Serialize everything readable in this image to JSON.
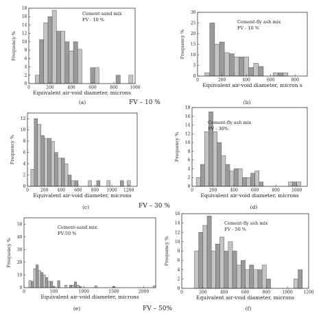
{
  "chart_data": [
    {
      "type": "bar",
      "panel_label": "(a)",
      "legend": [
        "Cement-sand mix",
        "FV - 10 %"
      ],
      "xlabel": "Equivalent air-void diameter, microns",
      "ylabel": "Frequency %",
      "xlim": [
        0,
        1000
      ],
      "ylim": [
        0,
        18
      ],
      "xticks": [
        0,
        200,
        400,
        600,
        800,
        1000
      ],
      "yticks": [
        0,
        2,
        4,
        6,
        8,
        10,
        12,
        14,
        16,
        18
      ],
      "bin_width": 40,
      "x": [
        80,
        120,
        160,
        200,
        240,
        280,
        320,
        360,
        400,
        440,
        480,
        600,
        640,
        840,
        960
      ],
      "values": [
        2,
        10.5,
        14.5,
        16,
        17.5,
        12.5,
        12.5,
        10,
        7.8,
        10,
        8.2,
        3.8,
        3.8,
        2,
        2
      ]
    },
    {
      "type": "bar",
      "panel_label": "(b)",
      "legend": [
        "Cement-fly ash mix",
        "FV - 10 %"
      ],
      "xlabel": "Equivalent air-void diameter, micron s",
      "ylabel": "Frequency %",
      "xlim": [
        0,
        900
      ],
      "ylim": [
        0,
        30
      ],
      "xticks": [
        0,
        200,
        400,
        600,
        800
      ],
      "yticks": [
        0,
        5,
        10,
        15,
        20,
        25,
        30
      ],
      "bin_width": 40,
      "x": [
        80,
        120,
        160,
        200,
        240,
        280,
        320,
        360,
        400,
        440,
        480,
        520,
        640,
        680,
        720
      ],
      "values": [
        1.5,
        25,
        15,
        16,
        11,
        10.5,
        9,
        9,
        9,
        4,
        6,
        4.5,
        1.5,
        1.5,
        1.5
      ]
    },
    {
      "type": "bar",
      "panel_label": "(c)",
      "legend": [],
      "xlabel": "Equivalent air-void diameter, microns",
      "ylabel": "Frequency %",
      "xlim": [
        0,
        1300
      ],
      "ylim": [
        0,
        13
      ],
      "xticks": [
        0,
        200,
        400,
        600,
        800,
        1000,
        1200
      ],
      "yticks": [
        0,
        2,
        4,
        6,
        8,
        10,
        12
      ],
      "bin_width": 40,
      "x": [
        60,
        100,
        140,
        180,
        220,
        260,
        300,
        340,
        380,
        420,
        460,
        500,
        540,
        580,
        740,
        840,
        960,
        1120,
        1200
      ],
      "values": [
        3,
        12,
        11,
        9,
        8.5,
        8.5,
        8,
        6,
        5,
        5,
        4,
        2,
        1,
        1,
        1,
        1,
        1,
        1,
        1
      ]
    },
    {
      "type": "bar",
      "panel_label": "(d)",
      "legend": [
        "Cement-fly ash mix",
        "FV - 30%"
      ],
      "xlabel": "Equivalent air-void diameter, microns",
      "ylabel": "Frequency %",
      "xlim": [
        0,
        1100
      ],
      "ylim": [
        0,
        18
      ],
      "xticks": [
        0,
        200,
        400,
        600,
        800,
        1000
      ],
      "yticks": [
        0,
        2,
        4,
        6,
        8,
        10,
        12,
        14,
        16,
        18
      ],
      "bin_width": 40,
      "x": [
        60,
        100,
        140,
        180,
        220,
        260,
        300,
        340,
        380,
        420,
        460,
        500,
        540,
        580,
        620,
        660,
        940,
        980,
        1020
      ],
      "values": [
        2,
        5,
        12.5,
        17,
        12.5,
        10,
        7,
        5,
        3.5,
        4,
        4,
        2,
        2,
        3,
        3.5,
        1,
        1,
        1,
        1
      ]
    },
    {
      "type": "bar",
      "panel_label": "(e)",
      "legend": [
        "Cement-sand mix",
        "FV-50 %"
      ],
      "xlabel": "Equivalent air-void diameter, microns",
      "ylabel": "Frequency %",
      "xlim": [
        0,
        2200
      ],
      "ylim": [
        0,
        55
      ],
      "xticks": [
        0,
        500,
        1000,
        1500,
        2000
      ],
      "yticks": [
        0,
        10,
        20,
        30,
        40,
        50
      ],
      "bin_width": 40,
      "x": [
        100,
        140,
        180,
        220,
        260,
        300,
        340,
        380,
        420,
        460,
        500,
        580,
        700,
        780,
        820,
        860,
        900,
        940,
        1200,
        1500,
        2180
      ],
      "values": [
        5.5,
        5,
        15,
        18,
        13.5,
        12,
        10,
        8,
        5,
        5,
        1,
        5.5,
        2,
        2,
        2,
        4.5,
        2,
        1,
        1.5,
        1,
        1.5
      ]
    },
    {
      "type": "bar",
      "panel_label": "(f)",
      "legend": [
        "Cement-fly ash mix",
        "FV - 50 %"
      ],
      "xlabel": "Equivalent air-void diameter, microns",
      "ylabel": "Frequency %",
      "xlim": [
        0,
        1200
      ],
      "ylim": [
        0,
        16
      ],
      "xticks": [
        0,
        200,
        400,
        600,
        800,
        1000,
        1200
      ],
      "yticks": [
        0,
        2,
        4,
        6,
        8,
        10,
        12,
        14,
        16
      ],
      "bin_width": 40,
      "x": [
        140,
        180,
        220,
        260,
        300,
        340,
        380,
        420,
        460,
        500,
        540,
        580,
        620,
        660,
        700,
        740,
        780,
        820,
        1080,
        1120
      ],
      "values": [
        8,
        12,
        13.5,
        15.5,
        8,
        9.5,
        11,
        8,
        10,
        8,
        5,
        6,
        4,
        5,
        4,
        4,
        5,
        2,
        2,
        4
      ]
    }
  ],
  "group_labels": [
    "FV – 10 %",
    "FV – 30 %",
    "FV – 50%"
  ]
}
